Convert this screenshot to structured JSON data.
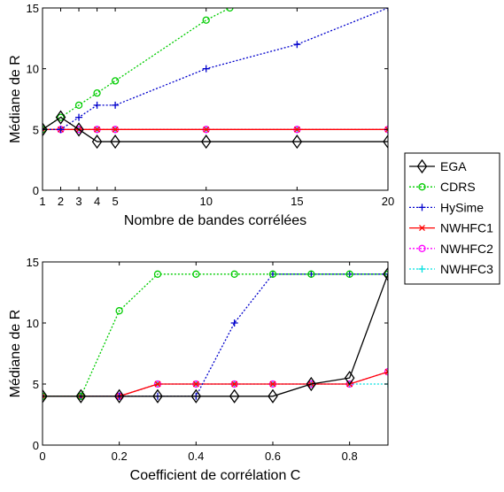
{
  "chart_data": [
    {
      "type": "line",
      "xlabel": "Nombre de bandes corrélées",
      "ylabel": "Médiane de R",
      "xlim": [
        1,
        20
      ],
      "ylim": [
        0,
        15
      ],
      "xticks": [
        "1",
        "2",
        "3",
        "4",
        "5",
        "10",
        "15",
        "20"
      ],
      "yticks": [
        "0",
        "5",
        "10",
        "15"
      ],
      "grid": false,
      "series": [
        {
          "name": "EGA",
          "color": "#000000",
          "marker": "diamond",
          "dash": "solid",
          "x": [
            1,
            2,
            3,
            4,
            5,
            10,
            15,
            20
          ],
          "y": [
            5,
            6,
            5,
            4,
            4,
            4,
            4,
            4
          ]
        },
        {
          "name": "CDRS",
          "color": "#00cc00",
          "marker": "circle",
          "dash": "dotted",
          "x": [
            1,
            2,
            3,
            4,
            5,
            10,
            11.3
          ],
          "y": [
            5,
            6,
            7,
            8,
            9,
            14,
            15
          ]
        },
        {
          "name": "HySime",
          "color": "#0000cc",
          "marker": "plus",
          "dash": "dotted",
          "x": [
            1,
            2,
            3,
            4,
            5,
            10,
            15,
            20
          ],
          "y": [
            5,
            5,
            6,
            7,
            7,
            10,
            12,
            15
          ]
        },
        {
          "name": "NWHFC1",
          "color": "#ff0000",
          "marker": "x",
          "dash": "solid",
          "x": [
            1,
            2,
            3,
            4,
            5,
            10,
            15,
            20
          ],
          "y": [
            5,
            5,
            5,
            5,
            5,
            5,
            5,
            5
          ]
        },
        {
          "name": "NWHFC2",
          "color": "#ff00ff",
          "marker": "circle",
          "dash": "dotted",
          "x": [
            1,
            2,
            3,
            4,
            5,
            10,
            15,
            20
          ],
          "y": [
            5,
            5,
            5,
            5,
            5,
            5,
            5,
            5
          ]
        },
        {
          "name": "NWHFC3",
          "color": "#00e0e0",
          "marker": "plus",
          "dash": "dotted",
          "x": [
            1,
            2,
            3,
            4,
            5,
            10,
            15,
            20
          ],
          "y": [
            5,
            5,
            5,
            5,
            5,
            5,
            5,
            5
          ]
        }
      ]
    },
    {
      "type": "line",
      "xlabel": "Coefficient de corrélation C",
      "ylabel": "Médiane de R",
      "xlim": [
        0,
        0.9
      ],
      "ylim": [
        0,
        15
      ],
      "xticks": [
        "0",
        "0.2",
        "0.4",
        "0.6",
        "0.8"
      ],
      "yticks": [
        "0",
        "5",
        "10",
        "15"
      ],
      "grid": false,
      "series": [
        {
          "name": "EGA",
          "color": "#000000",
          "marker": "diamond",
          "dash": "solid",
          "x": [
            0,
            0.1,
            0.2,
            0.3,
            0.4,
            0.5,
            0.6,
            0.7,
            0.8,
            0.9
          ],
          "y": [
            4,
            4,
            4,
            4,
            4,
            4,
            4,
            5,
            5.5,
            14
          ]
        },
        {
          "name": "CDRS",
          "color": "#00cc00",
          "marker": "circle",
          "dash": "dotted",
          "x": [
            0,
            0.1,
            0.2,
            0.3,
            0.4,
            0.5,
            0.6,
            0.7,
            0.8,
            0.9
          ],
          "y": [
            4,
            4,
            11,
            14,
            14,
            14,
            14,
            14,
            14,
            14
          ]
        },
        {
          "name": "HySime",
          "color": "#0000cc",
          "marker": "plus",
          "dash": "dotted",
          "x": [
            0,
            0.1,
            0.2,
            0.3,
            0.4,
            0.5,
            0.6,
            0.7,
            0.8,
            0.9
          ],
          "y": [
            4,
            4,
            4,
            4,
            4,
            10,
            14,
            14,
            14,
            14
          ]
        },
        {
          "name": "NWHFC1",
          "color": "#ff0000",
          "marker": "x",
          "dash": "solid",
          "x": [
            0,
            0.1,
            0.2,
            0.3,
            0.4,
            0.5,
            0.6,
            0.7,
            0.8,
            0.9
          ],
          "y": [
            4,
            4,
            4,
            5,
            5,
            5,
            5,
            5,
            5,
            6
          ]
        },
        {
          "name": "NWHFC2",
          "color": "#ff00ff",
          "marker": "circle",
          "dash": "dotted",
          "x": [
            0,
            0.1,
            0.2,
            0.3,
            0.4,
            0.5,
            0.6,
            0.7,
            0.8,
            0.9
          ],
          "y": [
            4,
            4,
            4,
            5,
            5,
            5,
            5,
            5,
            5,
            6
          ]
        },
        {
          "name": "NWHFC3",
          "color": "#00e0e0",
          "marker": "plus",
          "dash": "dotted",
          "x": [
            0,
            0.1,
            0.2,
            0.3,
            0.4,
            0.5,
            0.6,
            0.7,
            0.8,
            0.9
          ],
          "y": [
            4,
            4,
            4,
            5,
            5,
            5,
            5,
            5,
            5,
            5
          ]
        }
      ]
    }
  ],
  "legend": {
    "placement": "right",
    "entries": [
      "EGA",
      "CDRS",
      "HySime",
      "NWHFC1",
      "NWHFC2",
      "NWHFC3"
    ]
  }
}
